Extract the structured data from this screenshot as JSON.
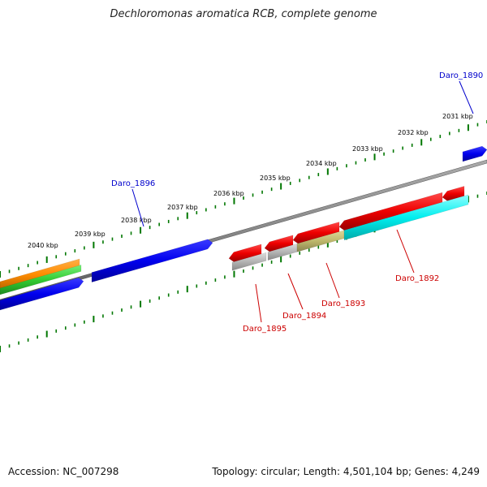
{
  "title": "Dechloromonas aromatica RCB, complete genome",
  "footer": {
    "accession": "Accession: NC_007298",
    "topology": "Topology: circular; Length: 4,501,104 bp; Genes: 4,249"
  },
  "colors": {
    "backbone": "#888888",
    "tick": "#007700",
    "forward_gene": "#0000ee",
    "reverse_gene": "#ee0000",
    "label_forward": "#0000cc",
    "label_reverse": "#cc0000",
    "cyan": "#00eeee",
    "gray_gene": "#b4b4b4",
    "olive": "#bdb76b",
    "orange": "#ff8c00",
    "green": "#33cc33"
  },
  "kbp_labels": [
    {
      "text": "2031 kbp",
      "kbp": 2031
    },
    {
      "text": "2032 kbp",
      "kbp": 2032
    },
    {
      "text": "2033 kbp",
      "kbp": 2033
    },
    {
      "text": "2034 kbp",
      "kbp": 2034
    },
    {
      "text": "2035 kbp",
      "kbp": 2035
    },
    {
      "text": "2036 kbp",
      "kbp": 2036
    },
    {
      "text": "2037 kbp",
      "kbp": 2037
    },
    {
      "text": "2038 kbp",
      "kbp": 2038
    },
    {
      "text": "2039 kbp",
      "kbp": 2039
    },
    {
      "text": "2040 kbp",
      "kbp": 2040
    }
  ],
  "gene_labels": [
    {
      "text": "Daro_1890",
      "strand": "forward"
    },
    {
      "text": "Daro_1896",
      "strand": "forward"
    },
    {
      "text": "Daro_1892",
      "strand": "reverse"
    },
    {
      "text": "Daro_1893",
      "strand": "reverse"
    },
    {
      "text": "Daro_1894",
      "strand": "reverse"
    },
    {
      "text": "Daro_1895",
      "strand": "reverse"
    }
  ]
}
